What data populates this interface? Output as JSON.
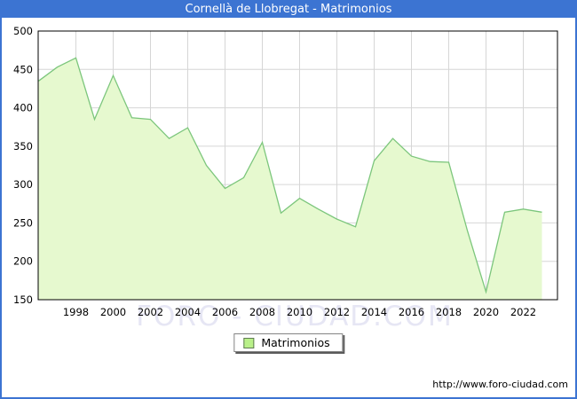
{
  "window": {
    "title": "Cornellà de Llobregat - Matrimonios"
  },
  "chart_data": {
    "type": "area",
    "title": "Cornellà de Llobregat - Matrimonios",
    "x": [
      1996,
      1997,
      1998,
      1999,
      2000,
      2001,
      2002,
      2003,
      2004,
      2005,
      2006,
      2007,
      2008,
      2009,
      2010,
      2011,
      2012,
      2013,
      2014,
      2015,
      2016,
      2017,
      2018,
      2019,
      2020,
      2021,
      2022,
      2023
    ],
    "series": [
      {
        "name": "Matrimonios",
        "values": [
          435,
          453,
          465,
          385,
          442,
          387,
          385,
          360,
          374,
          325,
          295,
          309,
          355,
          263,
          282,
          268,
          255,
          245,
          331,
          360,
          337,
          330,
          329,
          240,
          160,
          264,
          268,
          264
        ]
      }
    ],
    "xlabel": "",
    "ylabel": "",
    "ylim": [
      150,
      500
    ],
    "yticks": [
      150,
      200,
      250,
      300,
      350,
      400,
      450,
      500
    ],
    "xticks": [
      1998,
      2000,
      2002,
      2004,
      2006,
      2008,
      2010,
      2012,
      2014,
      2016,
      2018,
      2020,
      2022
    ],
    "x_range": [
      1996,
      2023
    ],
    "grid": true,
    "legend_position": "bottom-center",
    "colors": {
      "fill": "#e6f9cf",
      "line": "#7cc67c",
      "grid": "#d6d6d6",
      "plot_border": "#000000",
      "title_bar": "#3c74d2",
      "watermark": "#e6e6f4"
    }
  },
  "legend": {
    "label": "Matrimonios",
    "swatch_color": "#b9f089"
  },
  "watermark": {
    "text": "FORO - CIUDAD.COM"
  },
  "footer": {
    "url": "http://www.foro-ciudad.com"
  }
}
